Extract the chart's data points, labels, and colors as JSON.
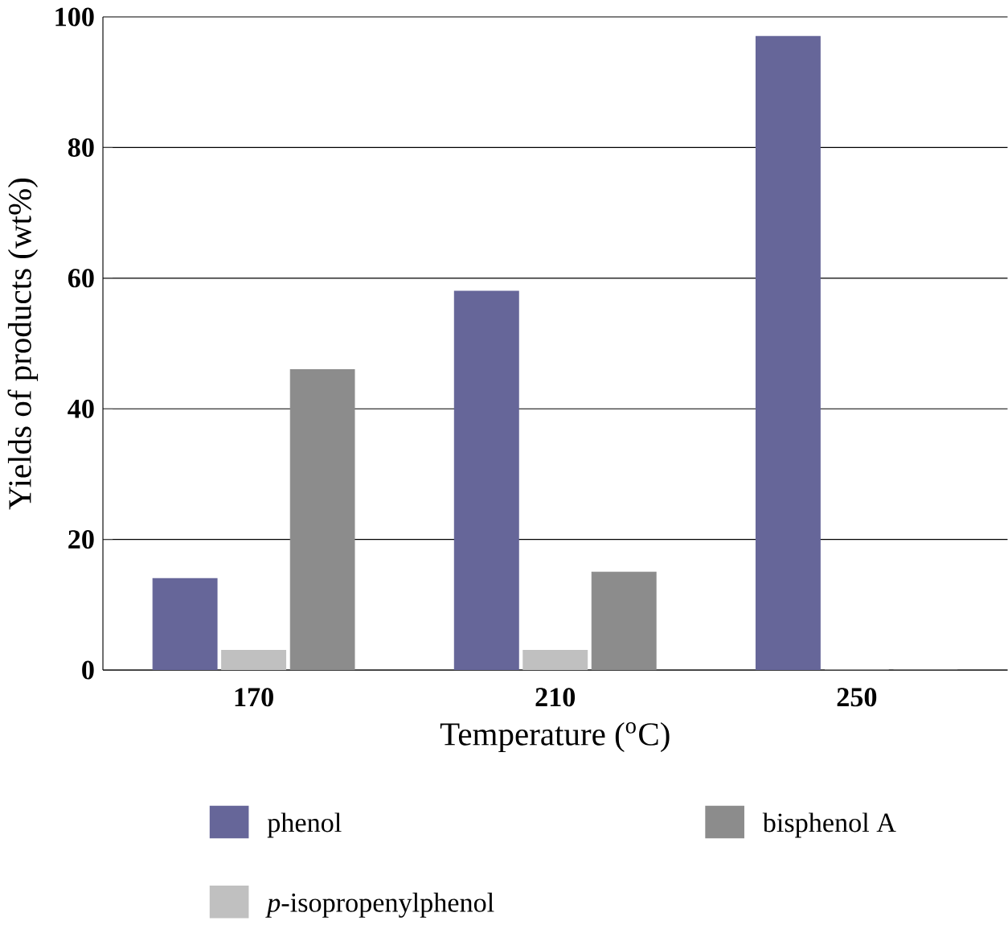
{
  "chart_data": {
    "type": "bar",
    "xlabel": "Temperature ($^{o}$C)",
    "ylabel": "Yields of products (wt%)",
    "categories": [
      "170",
      "210",
      "250"
    ],
    "series": [
      {
        "name": "phenol",
        "color": "#666699",
        "values": [
          14,
          58,
          97
        ]
      },
      {
        "name": "*p*-isopropenylphenol",
        "color": "#c0c0c0",
        "values": [
          3,
          3,
          0
        ]
      },
      {
        "name": "bisphenol A",
        "color": "#8c8c8c",
        "values": [
          46,
          15,
          0
        ]
      }
    ],
    "ylim": [
      0,
      100
    ],
    "yticks": [
      0,
      20,
      40,
      60,
      80,
      100
    ],
    "grid": "y",
    "legend": "bottom"
  }
}
